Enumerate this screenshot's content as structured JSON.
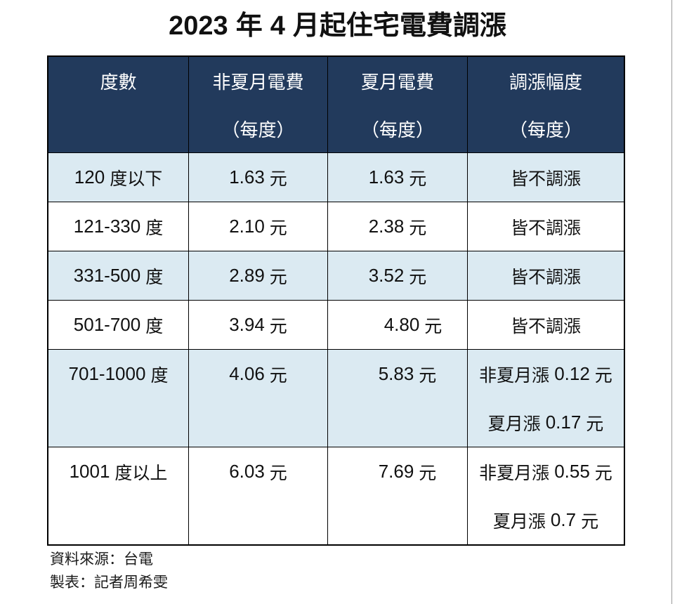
{
  "title": {
    "year": "2023",
    "year_unit": "年",
    "month": "4",
    "rest": "月起住宅電費調漲"
  },
  "table": {
    "headers": [
      {
        "line1": "度數",
        "line2": ""
      },
      {
        "line1": "非夏月電費",
        "line2": "（每度）"
      },
      {
        "line1": "夏月電費",
        "line2": "（每度）"
      },
      {
        "line1": "調漲幅度",
        "line2": "（每度）"
      }
    ],
    "rows": [
      {
        "tier": {
          "num": "120",
          "suffix": "度以下"
        },
        "non_summer": {
          "value": "1.63",
          "unit": "元"
        },
        "summer": {
          "value": "1.63",
          "unit": "元"
        },
        "adjust1": {
          "pre": "皆不調漲",
          "num": "",
          "unit": ""
        },
        "adjust2": {
          "pre": "",
          "num": "",
          "unit": ""
        }
      },
      {
        "tier": {
          "num": "121-330",
          "suffix": "度"
        },
        "non_summer": {
          "value": "2.10",
          "unit": "元"
        },
        "summer": {
          "value": "2.38",
          "unit": "元"
        },
        "adjust1": {
          "pre": "皆不調漲",
          "num": "",
          "unit": ""
        },
        "adjust2": {
          "pre": "",
          "num": "",
          "unit": ""
        }
      },
      {
        "tier": {
          "num": "331-500",
          "suffix": "度"
        },
        "non_summer": {
          "value": "2.89",
          "unit": "元"
        },
        "summer": {
          "value": "3.52",
          "unit": "元"
        },
        "adjust1": {
          "pre": "皆不調漲",
          "num": "",
          "unit": ""
        },
        "adjust2": {
          "pre": "",
          "num": "",
          "unit": ""
        }
      },
      {
        "tier": {
          "num": "501-700",
          "suffix": "度"
        },
        "non_summer": {
          "value": "3.94",
          "unit": "元"
        },
        "summer": {
          "value": "4.80",
          "unit": "元"
        },
        "adjust1": {
          "pre": "皆不調漲",
          "num": "",
          "unit": ""
        },
        "adjust2": {
          "pre": "",
          "num": "",
          "unit": ""
        }
      },
      {
        "tier": {
          "num": "701-1000",
          "suffix": "度"
        },
        "non_summer": {
          "value": "4.06",
          "unit": "元"
        },
        "summer": {
          "value": "5.83",
          "unit": "元"
        },
        "adjust1": {
          "pre": "非夏月漲",
          "num": "0.12",
          "unit": "元"
        },
        "adjust2": {
          "pre": "夏月漲",
          "num": "0.17",
          "unit": "元"
        }
      },
      {
        "tier": {
          "num": "1001",
          "suffix": "度以上"
        },
        "non_summer": {
          "value": "6.03",
          "unit": "元"
        },
        "summer": {
          "value": "7.69",
          "unit": "元"
        },
        "adjust1": {
          "pre": "非夏月漲",
          "num": "0.55",
          "unit": "元"
        },
        "adjust2": {
          "pre": "夏月漲",
          "num": "0.7",
          "unit": "元"
        }
      }
    ]
  },
  "footer": {
    "source": "資料來源：台電",
    "credit": "製表：記者周希雯"
  },
  "colors": {
    "header_bg": "#223A5C",
    "header_text": "#FFFFFF",
    "shaded_row_bg": "#DBEAF2",
    "plain_row_bg": "#FFFFFF",
    "border": "#000000",
    "body_text": "#111111"
  },
  "chart_data": {
    "type": "table",
    "title": "2023 年 4 月起住宅電費調漲",
    "columns": [
      "度數",
      "非夏月電費（每度）",
      "夏月電費（每度）",
      "調漲幅度（每度）"
    ],
    "rows": [
      [
        "120 度以下",
        "1.63 元",
        "1.63 元",
        "皆不調漲"
      ],
      [
        "121-330 度",
        "2.10 元",
        "2.38 元",
        "皆不調漲"
      ],
      [
        "331-500 度",
        "2.89 元",
        "3.52 元",
        "皆不調漲"
      ],
      [
        "501-700 度",
        "3.94 元",
        "4.80 元",
        "皆不調漲"
      ],
      [
        "701-1000 度",
        "4.06 元",
        "5.83 元",
        "非夏月漲 0.12 元；夏月漲 0.17 元"
      ],
      [
        "1001 度以上",
        "6.03 元",
        "7.69 元",
        "非夏月漲 0.55 元；夏月漲 0.7 元"
      ]
    ],
    "source": "資料來源：台電",
    "credit": "製表：記者周希雯"
  }
}
